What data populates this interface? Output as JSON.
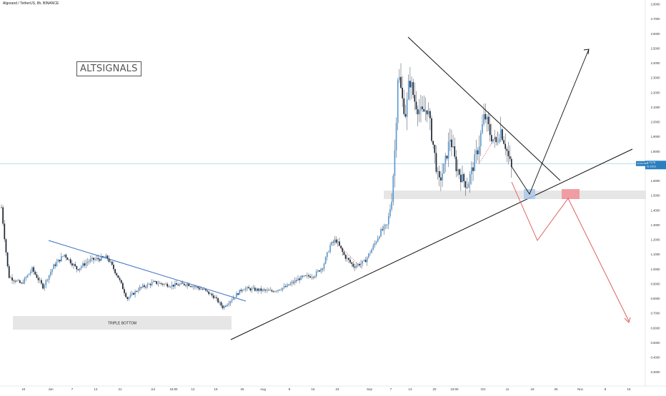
{
  "header": {
    "symbol_title": "Algorand / TetherUS, 8h, BINANCE",
    "watermark": "ALTSIGNALS"
  },
  "colors": {
    "candle_up": "#5b9bd5",
    "candle_down": "#1c2430",
    "wick": "#3a4656",
    "resistance_line": "#3a6fc4",
    "trend_line": "#111111",
    "bearish_path": "#e05050",
    "bullish_path": "#111111",
    "support_zone": "#e6e6e6",
    "current_price_line": "#8ecae6",
    "price_tag": "#2c7fbf",
    "target_box": "#f08f95"
  },
  "chart_data": {
    "type": "candlestick",
    "title": "Algorand / TetherUS, 8h, BINANCE",
    "ylim": [
      0.25,
      2.8
    ],
    "y_ticks": [
      "2.8000",
      "2.7000",
      "2.6000",
      "2.5000",
      "2.4000",
      "2.3000",
      "2.2000",
      "2.1000",
      "2.0000",
      "1.9000",
      "1.8000",
      "1.7000",
      "1.6000",
      "1.5000",
      "1.4000",
      "1.3000",
      "1.2000",
      "1.1000",
      "1.0000",
      "0.9000",
      "0.8000",
      "0.7000",
      "0.6000",
      "0.5000",
      "0.4000",
      "0.3000"
    ],
    "x_ticks": [
      "24",
      "Jun",
      "7",
      "14",
      "21",
      "Jul",
      "16:00",
      "12",
      "19",
      "26",
      "Aug",
      "9",
      "16",
      "23",
      "Sep",
      "7",
      "13",
      "20",
      "16:00",
      "Oct",
      "11",
      "18",
      "25",
      "Nov",
      "8",
      "15"
    ],
    "current_price": 1.7176,
    "current_price_label": "ALGOUSDT",
    "current_price_text": "1.7176",
    "current_price_sub": "01:15:01",
    "approx_close_path": [
      {
        "x": 2,
        "y": 1.42
      },
      {
        "x": 12,
        "y": 0.95
      },
      {
        "x": 30,
        "y": 0.9
      },
      {
        "x": 45,
        "y": 1.0
      },
      {
        "x": 60,
        "y": 0.88
      },
      {
        "x": 75,
        "y": 1.02
      },
      {
        "x": 90,
        "y": 1.1
      },
      {
        "x": 108,
        "y": 1.0
      },
      {
        "x": 125,
        "y": 1.06
      },
      {
        "x": 150,
        "y": 1.08
      },
      {
        "x": 165,
        "y": 0.95
      },
      {
        "x": 178,
        "y": 0.8
      },
      {
        "x": 195,
        "y": 0.87
      },
      {
        "x": 215,
        "y": 0.91
      },
      {
        "x": 240,
        "y": 0.89
      },
      {
        "x": 262,
        "y": 0.9
      },
      {
        "x": 285,
        "y": 0.86
      },
      {
        "x": 300,
        "y": 0.81
      },
      {
        "x": 312,
        "y": 0.74
      },
      {
        "x": 325,
        "y": 0.8
      },
      {
        "x": 340,
        "y": 0.87
      },
      {
        "x": 360,
        "y": 0.86
      },
      {
        "x": 380,
        "y": 0.85
      },
      {
        "x": 400,
        "y": 0.88
      },
      {
        "x": 420,
        "y": 0.94
      },
      {
        "x": 440,
        "y": 0.96
      },
      {
        "x": 452,
        "y": 1.02
      },
      {
        "x": 462,
        "y": 1.16
      },
      {
        "x": 470,
        "y": 1.2
      },
      {
        "x": 482,
        "y": 1.09
      },
      {
        "x": 495,
        "y": 1.02
      },
      {
        "x": 510,
        "y": 1.05
      },
      {
        "x": 522,
        "y": 1.15
      },
      {
        "x": 532,
        "y": 1.25
      },
      {
        "x": 542,
        "y": 1.3
      },
      {
        "x": 548,
        "y": 1.48
      },
      {
        "x": 553,
        "y": 1.85
      },
      {
        "x": 557,
        "y": 2.35
      },
      {
        "x": 563,
        "y": 2.15
      },
      {
        "x": 568,
        "y": 2.05
      },
      {
        "x": 573,
        "y": 2.3
      },
      {
        "x": 580,
        "y": 2.15
      },
      {
        "x": 590,
        "y": 2.05
      },
      {
        "x": 598,
        "y": 2.1
      },
      {
        "x": 606,
        "y": 1.85
      },
      {
        "x": 614,
        "y": 1.58
      },
      {
        "x": 622,
        "y": 1.7
      },
      {
        "x": 630,
        "y": 1.9
      },
      {
        "x": 638,
        "y": 1.7
      },
      {
        "x": 646,
        "y": 1.62
      },
      {
        "x": 654,
        "y": 1.57
      },
      {
        "x": 662,
        "y": 1.7
      },
      {
        "x": 670,
        "y": 1.84
      },
      {
        "x": 678,
        "y": 2.05
      },
      {
        "x": 686,
        "y": 1.92
      },
      {
        "x": 694,
        "y": 1.85
      },
      {
        "x": 700,
        "y": 1.96
      },
      {
        "x": 707,
        "y": 1.85
      },
      {
        "x": 712,
        "y": 1.75
      },
      {
        "x": 716,
        "y": 1.68
      }
    ]
  },
  "annotations": {
    "triple_bottom_label": "TRIPLE BOTTOM"
  }
}
